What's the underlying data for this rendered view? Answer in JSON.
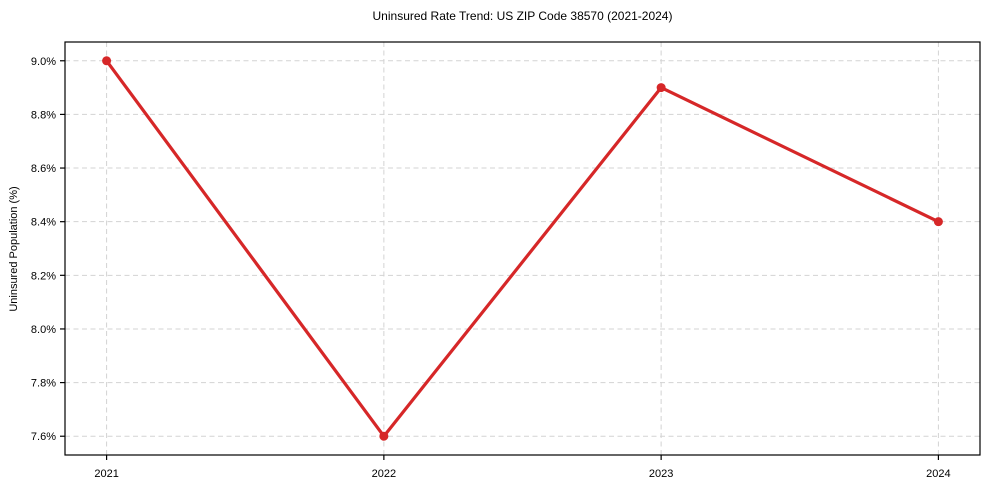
{
  "chart_data": {
    "type": "line",
    "title": "Uninsured Rate Trend: US ZIP Code 38570 (2021-2024)",
    "xlabel": "",
    "ylabel": "Uninsured Population (%)",
    "x": [
      2021,
      2022,
      2023,
      2024
    ],
    "xtick_labels": [
      "2021",
      "2022",
      "2023",
      "2024"
    ],
    "values": [
      9.0,
      7.6,
      8.9,
      8.4
    ],
    "yticks": [
      7.6,
      7.8,
      8.0,
      8.2,
      8.4,
      8.6,
      8.8,
      9.0
    ],
    "ytick_labels": [
      "7.6%",
      "7.8%",
      "8.0%",
      "8.2%",
      "8.4%",
      "8.6%",
      "8.8%",
      "9.0%"
    ],
    "xlim": [
      2020.85,
      2024.15
    ],
    "ylim": [
      7.53,
      9.07
    ],
    "grid": true,
    "grid_style": "dashed",
    "legend": "none",
    "marker": "circle",
    "colors": {
      "line": "#d62728",
      "marker": "#d62728",
      "grid": "#d3d3d3",
      "spine": "#000000",
      "text": "#000000",
      "background": "#ffffff"
    }
  }
}
